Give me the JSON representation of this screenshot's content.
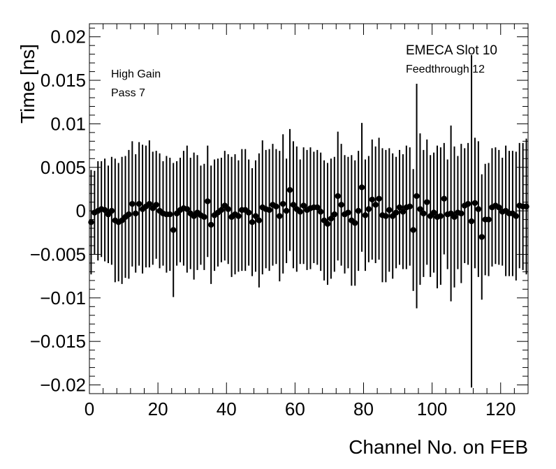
{
  "chart_data": {
    "type": "scatter",
    "xlabel": "Channel No. on FEB",
    "ylabel": "Time [ns]",
    "xlim": [
      0,
      128
    ],
    "ylim": [
      -0.021,
      0.0215
    ],
    "x_ticks": [
      "0",
      "20",
      "40",
      "60",
      "80",
      "100",
      "120"
    ],
    "y_ticks": [
      "−0.02",
      "−0.015",
      "−0.01",
      "−0.005",
      "0",
      "0.005",
      "0.01",
      "0.015",
      "0.02"
    ],
    "grid": false,
    "annotations": [
      "High Gain",
      "Pass 7",
      "EMECA Slot 10",
      "Feedthrough 12"
    ],
    "series": [
      {
        "x": [
          0,
          1,
          2,
          3,
          4,
          5,
          6,
          7,
          8,
          9,
          10,
          11,
          12,
          13,
          14,
          15,
          16,
          17,
          18,
          19,
          20,
          21,
          22,
          23,
          24,
          25,
          26,
          27,
          28,
          29,
          30,
          31,
          32,
          33,
          34,
          35,
          36,
          37,
          38,
          39,
          40,
          41,
          42,
          43,
          44,
          45,
          46,
          47,
          48,
          49,
          50,
          51,
          52,
          53,
          54,
          55,
          56,
          57,
          58,
          59,
          60,
          61,
          62,
          63,
          64,
          65,
          66,
          67,
          68,
          69,
          70,
          71,
          72,
          73,
          74,
          75,
          76,
          77,
          78,
          79,
          80,
          81,
          82,
          83,
          84,
          85,
          86,
          87,
          88,
          89,
          90,
          91,
          92,
          93,
          94,
          95,
          96,
          97,
          98,
          99,
          100,
          101,
          102,
          103,
          104,
          105,
          106,
          107,
          108,
          109,
          110,
          111,
          112,
          113,
          114,
          115,
          116,
          117,
          118,
          119,
          120,
          121,
          122,
          123,
          124,
          125,
          126,
          127
        ],
        "y": [
          -0.0013,
          -0.0002,
          0.0,
          0.0002,
          0.0001,
          -0.0004,
          0.0,
          -0.0011,
          -0.0013,
          -0.0011,
          -0.0007,
          -0.0004,
          0.0008,
          -0.0003,
          0.0008,
          0.0002,
          0.0005,
          0.0008,
          0.0003,
          0.0007,
          0.0,
          -0.0003,
          -0.0004,
          -0.0004,
          -0.0022,
          -0.0003,
          0.0001,
          0.0003,
          0.0002,
          -0.0003,
          -0.0006,
          -0.0002,
          -0.0005,
          -0.0007,
          0.0011,
          -0.0016,
          -0.0005,
          -0.0002,
          0.0001,
          0.0006,
          0.0002,
          -0.0007,
          -0.0004,
          -0.0006,
          0.0001,
          0.0001,
          -0.0002,
          -0.0013,
          -0.0006,
          -0.0011,
          0.0004,
          0.0002,
          0.0001,
          0.0007,
          0.0005,
          -0.0006,
          0.0008,
          0.0,
          0.0024,
          0.0007,
          0.0002,
          -0.0001,
          0.0006,
          0.0001,
          0.0003,
          0.0004,
          0.0004,
          -0.0001,
          -0.0011,
          -0.0015,
          -0.0009,
          -0.0004,
          0.0017,
          0.0007,
          -0.0004,
          -0.0002,
          -0.0011,
          -0.0014,
          0.0,
          0.0027,
          -0.0005,
          0.0002,
          0.0013,
          0.0007,
          0.0014,
          -0.0005,
          -0.0006,
          0.0001,
          -0.0006,
          -0.0002,
          0.0004,
          -0.0001,
          0.0004,
          0.0005,
          -0.0022,
          0.0017,
          0.0002,
          -0.0003,
          0.001,
          -0.0006,
          -0.0002,
          -0.0007,
          -0.0006,
          0.0014,
          -0.0004,
          -0.0003,
          -0.0007,
          -0.0002,
          -0.0003,
          0.0006,
          0.0008,
          -0.0012,
          0.0009,
          0.0002,
          -0.003,
          -0.001,
          -0.001,
          0.0004,
          0.0006,
          0.0004,
          -0.0001,
          0.0,
          -0.0003,
          -0.0003,
          -0.0006,
          0.0006,
          0.0005,
          0.0005
        ],
        "yerr": [
          0.006,
          0.0048,
          0.0057,
          0.0055,
          0.0059,
          0.0056,
          0.0062,
          0.0071,
          0.0068,
          0.0073,
          0.007,
          0.0074,
          0.0072,
          0.0068,
          0.0071,
          0.0074,
          0.007,
          0.0073,
          0.0065,
          0.0062,
          0.0066,
          0.006,
          0.0067,
          0.0065,
          0.0077,
          0.006,
          0.006,
          0.0066,
          0.0073,
          0.0064,
          0.0073,
          0.0066,
          0.0057,
          0.0061,
          0.0064,
          0.0068,
          0.0064,
          0.0062,
          0.006,
          0.0063,
          0.0063,
          0.0069,
          0.0069,
          0.0064,
          0.007,
          0.007,
          0.0061,
          0.0062,
          0.0064,
          0.0077,
          0.0077,
          0.0068,
          0.007,
          0.007,
          0.0066,
          0.0075,
          0.008,
          0.006,
          0.007,
          0.0073,
          0.0072,
          0.006,
          0.0067,
          0.0069,
          0.007,
          0.0064,
          0.0066,
          0.0068,
          0.0069,
          0.007,
          0.0069,
          0.0066,
          0.0074,
          0.007,
          0.0068,
          0.0064,
          0.0075,
          0.0072,
          0.0069,
          0.0074,
          0.0064,
          0.0061,
          0.0069,
          0.0067,
          0.007,
          0.0077,
          0.0076,
          0.0071,
          0.0072,
          0.0064,
          0.0066,
          0.0066,
          0.0071,
          0.0068,
          0.007,
          0.0129,
          0.0087,
          0.0073,
          0.0072,
          0.007,
          0.0069,
          0.0082,
          0.0079,
          0.0064,
          0.0063,
          0.0101,
          0.0081,
          0.0065,
          0.008,
          0.0066,
          0.007,
          0.0191,
          0.0075,
          0.0078,
          0.0072,
          0.0064,
          0.0065,
          0.0068,
          0.0067,
          0.0066,
          0.0062,
          0.0075,
          0.0072,
          0.0072,
          0.0074,
          0.0072,
          0.0073,
          0.0078
        ]
      }
    ]
  }
}
